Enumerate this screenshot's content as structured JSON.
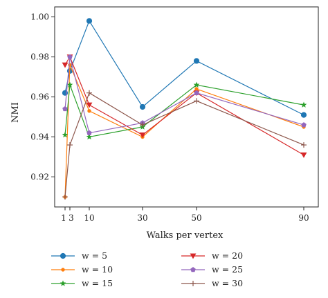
{
  "chart_data": {
    "type": "line",
    "xlabel": "Walks per vertex",
    "ylabel": "NMI",
    "x": [
      1,
      3,
      10,
      30,
      50,
      90
    ],
    "x_tick_values": [
      1,
      3,
      10,
      30,
      50,
      90
    ],
    "x_tick_labels": [
      "1",
      "3",
      "10",
      "30",
      "50",
      "90"
    ],
    "y_tick_values": [
      0.92,
      0.94,
      0.96,
      0.98,
      1.0
    ],
    "y_tick_labels": [
      "0.92",
      "0.94",
      "0.96",
      "0.98",
      "1.00"
    ],
    "ylim": [
      0.905,
      1.005
    ],
    "grid": false,
    "legend_position": "bottom",
    "series": [
      {
        "name": "w = 5",
        "color": "#1f77b4",
        "marker": "circle",
        "values": [
          0.962,
          0.973,
          0.998,
          0.955,
          0.978,
          0.951
        ]
      },
      {
        "name": "w = 10",
        "color": "#ff7f0e",
        "marker": "dot",
        "values": [
          0.91,
          0.976,
          0.953,
          0.94,
          0.964,
          0.945
        ]
      },
      {
        "name": "w = 15",
        "color": "#2ca02c",
        "marker": "star",
        "values": [
          0.941,
          0.966,
          0.94,
          0.945,
          0.966,
          0.956
        ]
      },
      {
        "name": "w = 20",
        "color": "#d62728",
        "marker": "triangle",
        "values": [
          0.976,
          0.98,
          0.956,
          0.941,
          0.962,
          0.931
        ]
      },
      {
        "name": "w = 25",
        "color": "#9467bd",
        "marker": "pentagon",
        "values": [
          0.954,
          0.98,
          0.942,
          0.947,
          0.962,
          0.946
        ]
      },
      {
        "name": "w = 30",
        "color": "#8c564b",
        "marker": "plus",
        "values": [
          0.91,
          0.936,
          0.962,
          0.946,
          0.958,
          0.936
        ]
      }
    ]
  }
}
